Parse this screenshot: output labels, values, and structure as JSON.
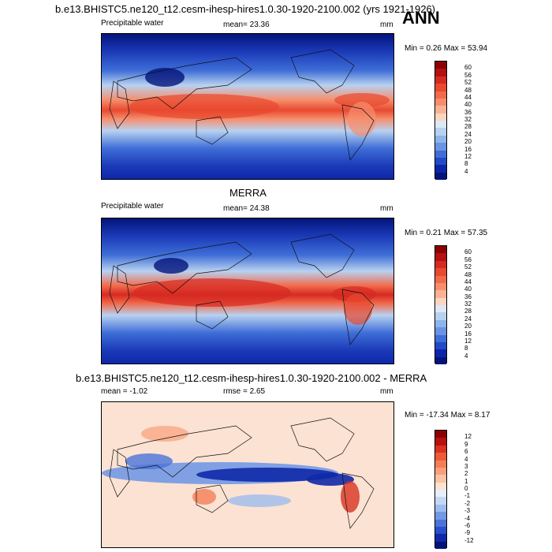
{
  "header": {
    "main_title": "b.e13.BHISTC5.ne120_t12.cesm-ihesp-hires1.0.30-1920-2100.002 (yrs 1921-1926)",
    "season": "ANN"
  },
  "panels": [
    {
      "title": "",
      "left_label": "Precipitable water",
      "mean_label": "mean=  23.36",
      "units": "mm",
      "minmax": "Min =   0.26 Max =  53.94",
      "colorbar": {
        "labels": [
          "60",
          "56",
          "52",
          "48",
          "44",
          "40",
          "36",
          "32",
          "28",
          "24",
          "20",
          "16",
          "12",
          "8",
          "4"
        ],
        "colors": [
          "#8b0000",
          "#b40f12",
          "#d52a22",
          "#e8492f",
          "#f26a4a",
          "#f68e6d",
          "#f9b394",
          "#fbd6bf",
          "#dde8f6",
          "#b8d1f0",
          "#8eb4ec",
          "#6a93e3",
          "#3f6ed7",
          "#2249c6",
          "#0c25a8",
          "#03137a"
        ]
      }
    },
    {
      "title": "MERRA",
      "left_label": "Precipitable water",
      "mean_label": "mean=  24.38",
      "units": "mm",
      "minmax": "Min =   0.21 Max =  57.35",
      "colorbar": {
        "labels": [
          "60",
          "56",
          "52",
          "48",
          "44",
          "40",
          "36",
          "32",
          "28",
          "24",
          "20",
          "16",
          "12",
          "8",
          "4"
        ],
        "colors": [
          "#8b0000",
          "#b40f12",
          "#d52a22",
          "#e8492f",
          "#f26a4a",
          "#f68e6d",
          "#f9b394",
          "#fbd6bf",
          "#dde8f6",
          "#b8d1f0",
          "#8eb4ec",
          "#6a93e3",
          "#3f6ed7",
          "#2249c6",
          "#0c25a8",
          "#03137a"
        ]
      }
    },
    {
      "title": "b.e13.BHISTC5.ne120_t12.cesm-ihesp-hires1.0.30-1920-2100.002 - MERRA",
      "left_label": "mean = -1.02",
      "mean_label": "rmse =   2.65",
      "units": "mm",
      "minmax": "Min = -17.34 Max =   8.17",
      "colorbar": {
        "labels": [
          "12",
          "9",
          "6",
          "4",
          "3",
          "2",
          "1",
          "0",
          "-1",
          "-2",
          "-3",
          "-4",
          "-6",
          "-9",
          "-12"
        ],
        "colors": [
          "#8b0000",
          "#b80f10",
          "#d9321f",
          "#ee5a38",
          "#f57e57",
          "#f9a07b",
          "#fbc3a4",
          "#fde2d0",
          "#e6eefa",
          "#c4d8f3",
          "#9dbdee",
          "#7399e5",
          "#4a74d9",
          "#2a4fc8",
          "#1029a9",
          "#04137a"
        ]
      }
    }
  ]
}
